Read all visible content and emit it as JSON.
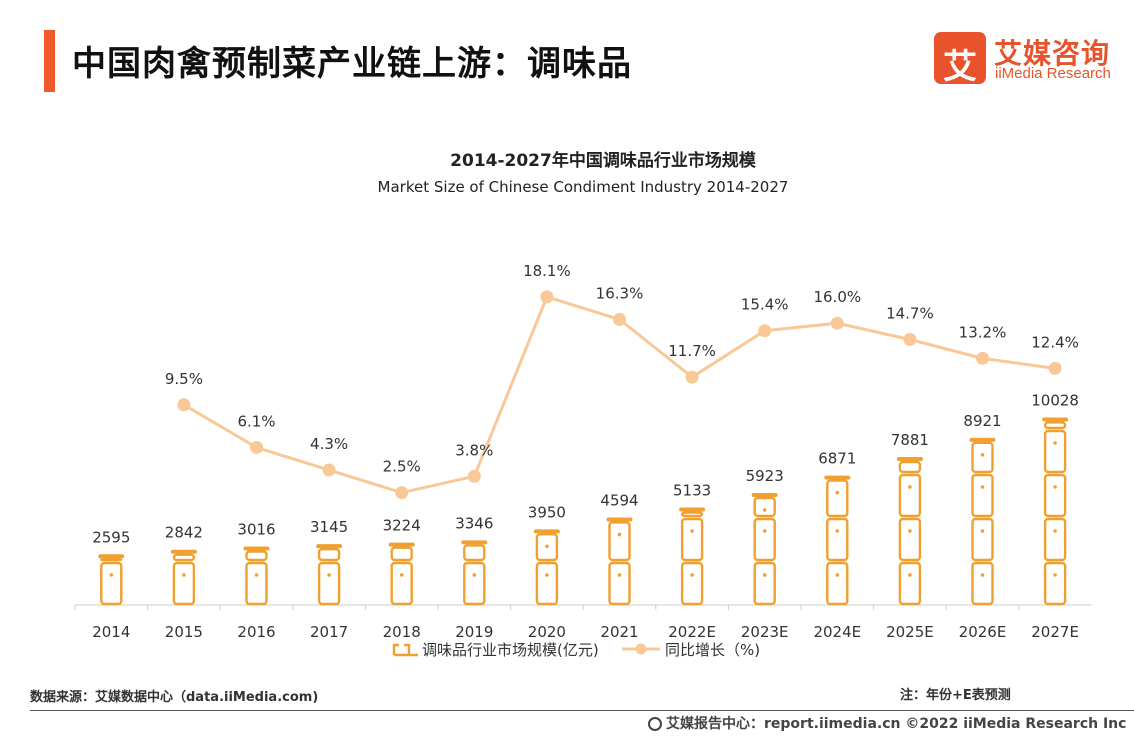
{
  "header": {
    "title": "中国肉禽预制菜产业链上游：调味品",
    "logo_char": "艾",
    "logo_cn": "艾媒咨询",
    "logo_en": "iiMedia Research"
  },
  "chart_data": {
    "type": "bar+line",
    "title": "2014-2027年中国调味品行业市场规模",
    "subtitle": "Market Size of Chinese Condiment Industry 2014-2027",
    "categories": [
      "2014",
      "2015",
      "2016",
      "2017",
      "2018",
      "2019",
      "2020",
      "2021",
      "2022E",
      "2023E",
      "2024E",
      "2025E",
      "2026E",
      "2027E"
    ],
    "series": [
      {
        "name": "调味品行业市场规模(亿元)",
        "type": "bar",
        "values": [
          2595,
          2842,
          3016,
          3145,
          3224,
          3346,
          3950,
          4594,
          5133,
          5923,
          6871,
          7881,
          8921,
          10028
        ]
      },
      {
        "name": "同比增长（%)",
        "type": "line",
        "values": [
          null,
          9.5,
          6.1,
          4.3,
          2.5,
          3.8,
          18.1,
          16.3,
          11.7,
          15.4,
          16.0,
          14.7,
          13.2,
          12.4
        ],
        "labels": [
          "",
          "9.5%",
          "6.1%",
          "4.3%",
          "2.5%",
          "3.8%",
          "18.1%",
          "16.3%",
          "11.7%",
          "15.4%",
          "16.0%",
          "14.7%",
          "13.2%",
          "12.4%"
        ]
      }
    ],
    "legend": [
      "调味品行业市场规模(亿元)",
      "同比增长（%)"
    ],
    "legend_position": "bottom",
    "colors": {
      "bar": "#f0a030",
      "line": "#f8c896",
      "axis": "#cccccc"
    }
  },
  "footer": {
    "source": "数据来源：艾媒数据中心（data.iiMedia.com)",
    "note": "注：年份+E表预测",
    "site": "艾媒报告中心：report.iimedia.cn  ©2022  iiMedia Research  Inc"
  }
}
